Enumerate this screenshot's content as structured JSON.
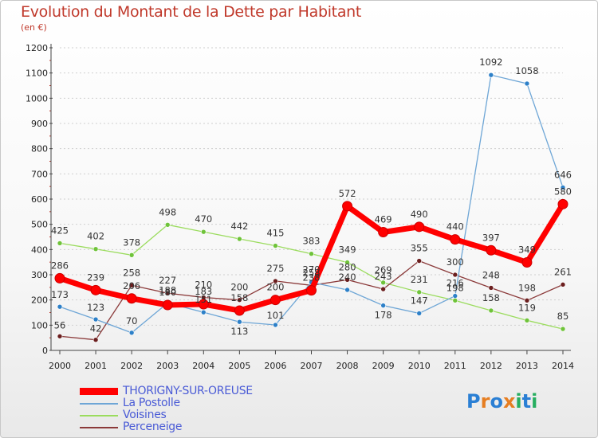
{
  "header": {
    "title": "Evolution du Montant de la Dette par Habitant",
    "unit": "(en €)"
  },
  "logo": {
    "text": "Proxiti",
    "letters": [
      "P",
      "r",
      "o",
      "x",
      "i",
      "t",
      "i"
    ],
    "colors": [
      "#2a7fd4",
      "#e67e22",
      "#2a7fd4",
      "#e67e22",
      "#27ae60",
      "#2a7fd4",
      "#27ae60"
    ]
  },
  "chart_data": {
    "type": "line",
    "title": "Evolution du Montant de la Dette par Habitant",
    "ylabel": "(en €)",
    "xlabel": "",
    "x": [
      "2000",
      "2001",
      "2002",
      "2003",
      "2004",
      "2005",
      "2006",
      "2007",
      "2008",
      "2009",
      "2010",
      "2011",
      "2012",
      "2013",
      "2014"
    ],
    "ylim": [
      0,
      1200
    ],
    "yticks": [
      "0",
      "100",
      "200",
      "300",
      "400",
      "500",
      "600",
      "700",
      "800",
      "900",
      "1000",
      "1100",
      "1200"
    ],
    "grid": "horizontal dashed",
    "legend_position": "bottom-left",
    "series": [
      {
        "name": "THORIGNY-SUR-OREUSE",
        "color": "#ff0000",
        "width": 7,
        "marker": 6,
        "values": [
          286,
          239,
          206,
          180,
          183,
          158,
          200,
          238,
          572,
          469,
          490,
          440,
          397,
          349,
          580
        ],
        "labels": [
          "286",
          "239",
          "206",
          "180",
          "183",
          "158",
          "200",
          "238",
          "572",
          "469",
          "490",
          "440",
          "397",
          "349",
          "580"
        ]
      },
      {
        "name": "La Postolle",
        "color": "#6ea6d6",
        "width": 1.3,
        "marker": 3,
        "markerColor": "#2d80c8",
        "values": [
          173,
          123,
          70,
          188,
          151,
          113,
          101,
          270,
          240,
          178,
          147,
          216,
          1092,
          1058,
          646
        ],
        "labels": [
          "173",
          "123",
          "70",
          "188",
          "151",
          "113",
          "101",
          "270",
          "240",
          "178",
          "147",
          "216",
          "1092",
          "1058",
          "646"
        ]
      },
      {
        "name": "Voisines",
        "color": "#9bdc5e",
        "width": 1.3,
        "marker": 3,
        "markerColor": "#6fc33a",
        "values": [
          425,
          402,
          378,
          498,
          470,
          442,
          415,
          383,
          349,
          269,
          231,
          198,
          158,
          119,
          85
        ],
        "labels": [
          "425",
          "402",
          "378",
          "498",
          "470",
          "442",
          "415",
          "383",
          "349",
          "269",
          "231",
          "198",
          "158",
          "119",
          "85"
        ]
      },
      {
        "name": "Perceneige",
        "color": "#8b3a3a",
        "width": 1.3,
        "marker": 3,
        "markerColor": "#6b1e1e",
        "values": [
          56,
          42,
          258,
          227,
          210,
          200,
          275,
          258,
          280,
          243,
          355,
          300,
          248,
          198,
          261
        ],
        "labels": [
          "56",
          "42",
          "258",
          "227",
          "210",
          "200",
          "275",
          "258",
          "280",
          "243",
          "355",
          "300",
          "248",
          "198",
          "261"
        ]
      }
    ]
  }
}
